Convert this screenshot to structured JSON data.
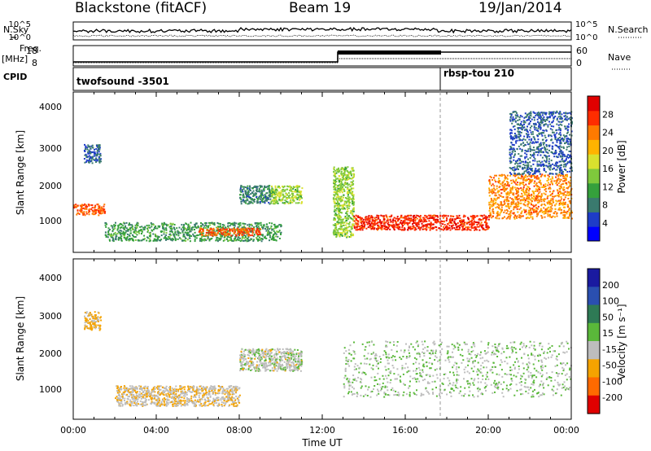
{
  "header": {
    "station": "Blackstone (fitACF)",
    "beam": "Beam 19",
    "date": "19/Jan/2014"
  },
  "top_panels": {
    "nsky_label": "N.Sky",
    "nsearch_label": "N.Search",
    "noise_ticks": [
      "10^5",
      "10^0"
    ],
    "freq_label": "Freq.",
    "freq_unit": "[MHz]",
    "freq_ticks": [
      "18",
      "8"
    ],
    "nave_label": "Nave",
    "nave_ticks": [
      "60",
      "0"
    ],
    "cpid_label": "CPID",
    "cpid_segments": [
      {
        "name": "twofsound -3501",
        "start_hour": 0
      },
      {
        "name": "rbsp-tou 210",
        "start_hour": 18.0
      }
    ]
  },
  "x_axis": {
    "label": "Time UT",
    "ticks": [
      "00:00",
      "04:00",
      "08:00",
      "12:00",
      "16:00",
      "20:00",
      "00:00"
    ],
    "range_hours": [
      0,
      24
    ]
  },
  "power_panel": {
    "ylabel": "Slant Range [km]",
    "yticks": [
      "1000",
      "2000",
      "3000",
      "4000"
    ],
    "colorbar_label": "Power [dB]",
    "colorbar_ticks": [
      "4",
      "8",
      "12",
      "16",
      "20",
      "24",
      "28"
    ],
    "colors": [
      "#0000ff",
      "#1e3cc8",
      "#3a7a6e",
      "#35a03c",
      "#7fc93c",
      "#d9e12e",
      "#ffb300",
      "#ff7a00",
      "#ff2d00",
      "#e00000"
    ]
  },
  "velocity_panel": {
    "ylabel": "Slant Range [km]",
    "yticks": [
      "1000",
      "2000",
      "3000",
      "4000"
    ],
    "colorbar_label": "Velocity [m s⁻¹]",
    "colorbar_ticks": [
      "200",
      "100",
      "50",
      "15",
      "-15",
      "-50",
      "-100",
      "-200"
    ],
    "colors": [
      "#1a1aa0",
      "#2a4fb0",
      "#2e7a55",
      "#5ab83a",
      "#bdbdbd",
      "#f5a300",
      "#ff6a00",
      "#e00000"
    ]
  },
  "chart_data": {
    "type": "heatmap",
    "title": "Blackstone (fitACF)   Beam 19   19/Jan/2014",
    "xlabel": "Time UT",
    "ylabel": "Slant Range [km]",
    "xlim_hours": [
      0,
      24
    ],
    "ylim_km": [
      180,
      4500
    ],
    "grid": false,
    "series": [
      {
        "name": "Power [dB]",
        "clim": [
          0,
          30
        ],
        "regions": [
          {
            "t0": 0.0,
            "t1": 1.5,
            "r0": 1200,
            "r1": 1500,
            "value": 24
          },
          {
            "t0": 0.5,
            "t1": 1.3,
            "r0": 2600,
            "r1": 3100,
            "value": 6
          },
          {
            "t0": 1.5,
            "t1": 10.0,
            "r0": 500,
            "r1": 1000,
            "value": 10
          },
          {
            "t0": 6.0,
            "t1": 9.0,
            "r0": 650,
            "r1": 850,
            "value": 24
          },
          {
            "t0": 8.0,
            "t1": 9.5,
            "r0": 1500,
            "r1": 2000,
            "value": 8
          },
          {
            "t0": 9.5,
            "t1": 11.0,
            "r0": 1500,
            "r1": 2000,
            "value": 14
          },
          {
            "t0": 12.5,
            "t1": 13.5,
            "r0": 600,
            "r1": 2500,
            "value": 14
          },
          {
            "t0": 13.5,
            "t1": 20.0,
            "r0": 800,
            "r1": 1200,
            "value": 26
          },
          {
            "t0": 20.0,
            "t1": 24.0,
            "r0": 1100,
            "r1": 2300,
            "value": 22
          },
          {
            "t0": 21.0,
            "t1": 24.0,
            "r0": 2300,
            "r1": 4000,
            "value": 6
          }
        ]
      },
      {
        "name": "Velocity [m s-1]",
        "clim": [
          -200,
          200
        ],
        "regions": [
          {
            "t0": 0.5,
            "t1": 1.3,
            "r0": 2600,
            "r1": 3100,
            "value": -60
          },
          {
            "t0": 2.0,
            "t1": 8.0,
            "r0": 550,
            "r1": 1100,
            "value": -40
          },
          {
            "t0": 8.0,
            "t1": 11.0,
            "r0": 1500,
            "r1": 2100,
            "value": -20
          },
          {
            "t0": 13.0,
            "t1": 24.0,
            "r0": 800,
            "r1": 2300,
            "value": 0
          }
        ]
      }
    ]
  }
}
